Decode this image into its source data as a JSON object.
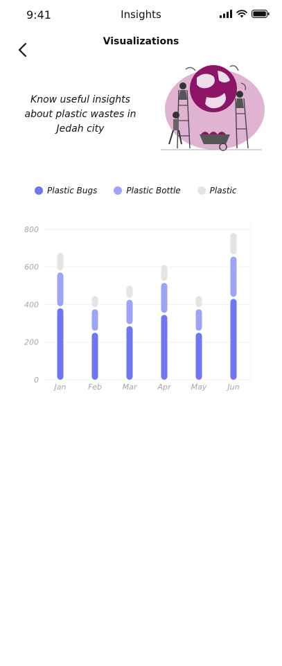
{
  "status": {
    "time": "9:41",
    "title": "Insights"
  },
  "header": {
    "title": "Visualizations"
  },
  "intro": {
    "text": "Know useful insights about plastic wastes in Jedah city"
  },
  "colors": {
    "plastic_bugs": "#6f76f0",
    "plastic_bottle": "#9ea4f5",
    "plastic": "#e4e4e4",
    "illustration_accent": "#8c1567"
  },
  "icons": {
    "back": "chevron-left-icon",
    "illustration": "earth-cleaning-illustration"
  },
  "chart_data": {
    "type": "bar",
    "stacked": true,
    "categories": [
      "Jan",
      "Feb",
      "Mar",
      "Apr",
      "May",
      "Jun"
    ],
    "series": [
      {
        "name": "Plastic Bugs",
        "color": "#6f76f0",
        "values": [
          380,
          250,
          285,
          345,
          250,
          430
        ]
      },
      {
        "name": "Plastic Bottle",
        "color": "#9ea4f5",
        "values": [
          190,
          125,
          140,
          170,
          125,
          225
        ]
      },
      {
        "name": "Plastic",
        "color": "#e4e4e4",
        "values": [
          105,
          70,
          75,
          95,
          70,
          125
        ]
      }
    ],
    "y_ticks": [
      "0",
      "200",
      "400",
      "600",
      "800"
    ],
    "ylim": [
      0,
      840
    ],
    "grid": true,
    "legend_position": "top-left"
  }
}
